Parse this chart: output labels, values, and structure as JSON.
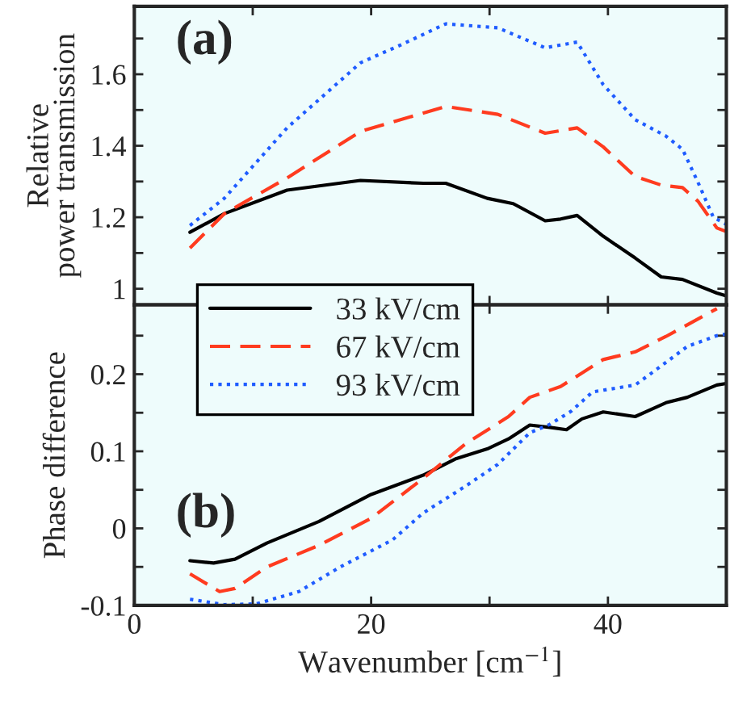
{
  "chart_data": [
    {
      "type": "line",
      "ylabel": "Relative\npower transmission",
      "annotations": [
        "(a)"
      ],
      "xlim": [
        0,
        50
      ],
      "ylim": [
        0.955,
        1.79
      ],
      "tick_labels": "y",
      "legend": "bottom left",
      "xticks": [
        {
          "value": 0,
          "label": null
        },
        {
          "value": 10,
          "label": null
        },
        {
          "value": 20,
          "label": null
        },
        {
          "value": 30,
          "label": null
        },
        {
          "value": 40,
          "label": null
        },
        {
          "value": 50,
          "label": null
        }
      ],
      "yticks": [
        1,
        {
          "value": 1.1,
          "label": null
        },
        1.2,
        {
          "value": 1.3,
          "label": null
        },
        1.4,
        {
          "value": 1.5,
          "label": null
        },
        1.6,
        {
          "value": 1.7,
          "label": null
        }
      ],
      "series": [
        {
          "name": "33 kV/cm",
          "color": "#000000",
          "line_style": "solid",
          "x": [
            4.7,
            7.6,
            12.9,
            19.1,
            24.4,
            26.3,
            29.8,
            32.0,
            34.7,
            36.0,
            37.4,
            39.6,
            42.3,
            44.5,
            46.3,
            49.2,
            50
          ],
          "values": [
            1.158,
            1.21,
            1.276,
            1.303,
            1.295,
            1.295,
            1.253,
            1.238,
            1.19,
            1.195,
            1.205,
            1.147,
            1.086,
            1.033,
            1.026,
            0.988,
            0.98
          ]
        },
        {
          "name": "67 kV/cm",
          "color": "#ff3b1f",
          "line_style": "dashed",
          "x": [
            4.7,
            7.6,
            12.9,
            19.1,
            26.3,
            30.7,
            34.7,
            37.4,
            39.6,
            42.3,
            44.5,
            46.3,
            47.6,
            49.2,
            50
          ],
          "values": [
            1.114,
            1.21,
            1.31,
            1.44,
            1.51,
            1.488,
            1.435,
            1.45,
            1.397,
            1.314,
            1.29,
            1.283,
            1.245,
            1.17,
            1.16
          ]
        },
        {
          "name": "93 kV/cm",
          "color": "#1f5cff",
          "line_style": "dotted",
          "x": [
            4.7,
            7.6,
            12.9,
            19.1,
            22.7,
            26.3,
            30.7,
            34.7,
            37.4,
            39.6,
            42.3,
            44.9,
            46.3,
            47.6,
            48.9,
            50
          ],
          "values": [
            1.177,
            1.253,
            1.45,
            1.632,
            1.685,
            1.741,
            1.73,
            1.674,
            1.69,
            1.571,
            1.473,
            1.427,
            1.39,
            1.298,
            1.2,
            1.18
          ]
        }
      ]
    },
    {
      "type": "line",
      "ylabel": "Phase difference",
      "xlabel": "Wavenumber [cm$^{−1}$]",
      "annotations": [
        "(b)"
      ],
      "xlim": [
        0,
        50
      ],
      "ylim": [
        -0.1,
        0.29
      ],
      "xticks": [
        0,
        {
          "value": 10,
          "label": null
        },
        20,
        {
          "value": 30,
          "label": null
        },
        40,
        {
          "value": 50,
          "label": null
        }
      ],
      "yticks": [
        -0.1,
        {
          "value": -0.05,
          "label": null
        },
        0,
        {
          "value": 0.05,
          "label": null
        },
        0.1,
        {
          "value": 0.15,
          "label": null
        },
        0.2,
        {
          "value": 0.25,
          "label": null
        }
      ],
      "series": [
        {
          "color": "#000000",
          "line_style": "solid",
          "x": [
            4.7,
            6.7,
            8.5,
            11.2,
            15.6,
            20.0,
            24.4,
            27.1,
            29.8,
            31.6,
            33.4,
            35.1,
            36.5,
            37.8,
            39.6,
            42.3,
            44.9,
            46.7,
            49.2,
            50
          ],
          "values": [
            -0.042,
            -0.045,
            -0.04,
            -0.019,
            0.009,
            0.044,
            0.069,
            0.09,
            0.103,
            0.116,
            0.134,
            0.131,
            0.128,
            0.142,
            0.151,
            0.145,
            0.163,
            0.17,
            0.186,
            0.188
          ]
        },
        {
          "color": "#ff3b1f",
          "line_style": "dashed",
          "x": [
            4.7,
            7.2,
            8.5,
            11.2,
            15.6,
            20.0,
            24.4,
            28.0,
            31.6,
            33.4,
            36.0,
            39.6,
            42.3,
            44.9,
            46.7,
            49.2
          ],
          "values": [
            -0.059,
            -0.082,
            -0.078,
            -0.05,
            -0.022,
            0.013,
            0.065,
            0.11,
            0.145,
            0.17,
            0.184,
            0.219,
            0.229,
            0.249,
            0.264,
            0.285
          ]
        },
        {
          "color": "#1f5cff",
          "line_style": "dotted",
          "x": [
            4.7,
            7.6,
            10.3,
            13.9,
            17.4,
            21.8,
            24.4,
            28.0,
            30.7,
            33.4,
            35.1,
            36.9,
            38.7,
            42.3,
            44.0,
            46.7,
            49.2,
            50
          ],
          "values": [
            -0.092,
            -0.099,
            -0.098,
            -0.082,
            -0.05,
            -0.015,
            0.02,
            0.055,
            0.083,
            0.124,
            0.135,
            0.152,
            0.177,
            0.186,
            0.205,
            0.236,
            0.25,
            0.252
          ]
        }
      ]
    }
  ]
}
